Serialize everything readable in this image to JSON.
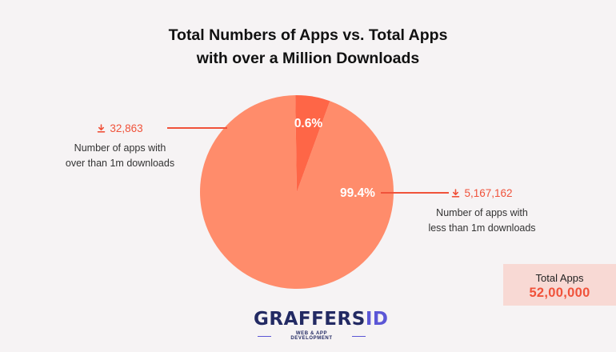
{
  "chart_data": {
    "type": "pie",
    "title_lines": [
      "Total Numbers of Apps vs. Total Apps",
      "with over a Million Downloads"
    ],
    "slices": [
      {
        "label": "Number of apps with over than 1m downloads",
        "label_lines": [
          "Number of apps with",
          "over than 1m downloads"
        ],
        "value": 32863,
        "value_text": "32,863",
        "percent": 0.6,
        "percent_text": "0.6%",
        "color": "#fe6647"
      },
      {
        "label": "Number of apps with less than 1m downloads",
        "label_lines": [
          "Number of apps with",
          "less than 1m downloads"
        ],
        "value": 5167162,
        "value_text": "5,167,162",
        "percent": 99.4,
        "percent_text": "99.4%",
        "color": "#ff8c6b"
      }
    ],
    "total": {
      "label": "Total Apps",
      "value_text": "52,00,000"
    }
  },
  "colors": {
    "accent": "#f0523a",
    "box_bg": "#f8d9d4",
    "background": "#f6f3f4"
  },
  "icons": [
    "download-icon"
  ],
  "logo": {
    "word_main": "GRAFFERS",
    "word_accent": "ID",
    "tagline": "WEB & APP DEVELOPMENT"
  }
}
